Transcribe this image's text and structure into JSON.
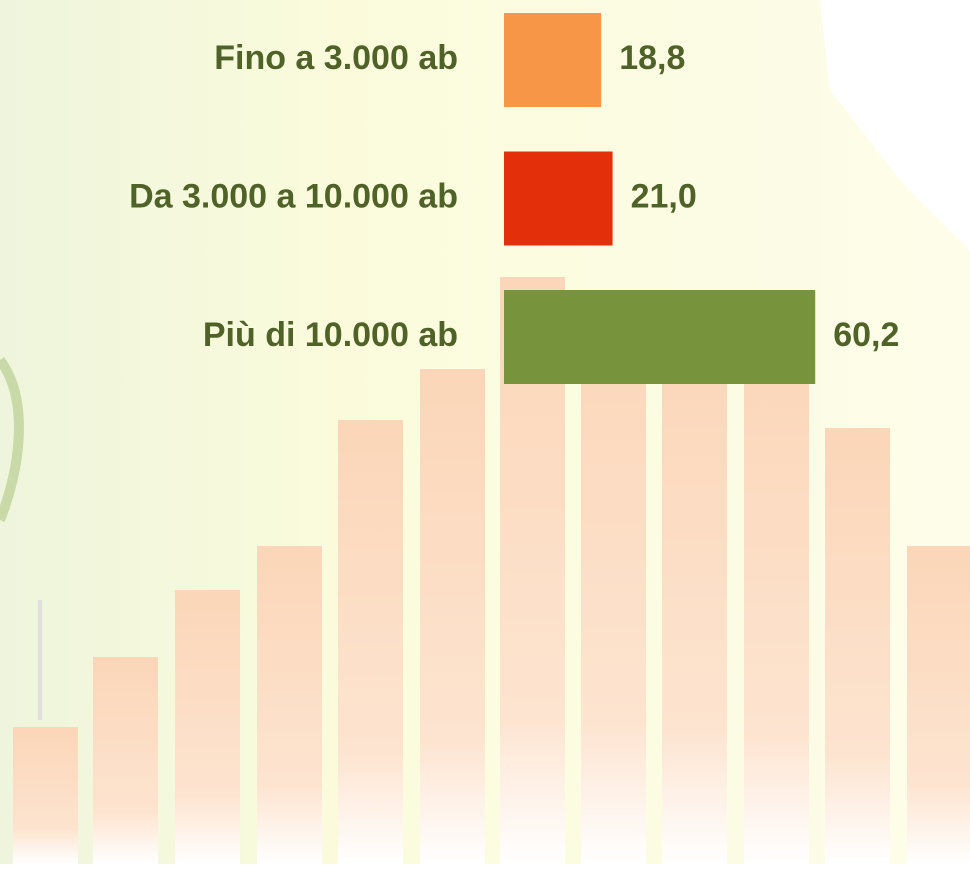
{
  "chart_data": {
    "type": "bar",
    "orientation": "horizontal",
    "categories": [
      "Fino a 3.000 ab",
      "Da 3.000 a 10.000 ab",
      "Più di 10.000 ab"
    ],
    "values": [
      18.8,
      21.0,
      60.2
    ],
    "value_labels": [
      "18,8",
      "21,0",
      "60,2"
    ],
    "colors": [
      "#f79646",
      "#e3300a",
      "#77933c"
    ]
  }
}
